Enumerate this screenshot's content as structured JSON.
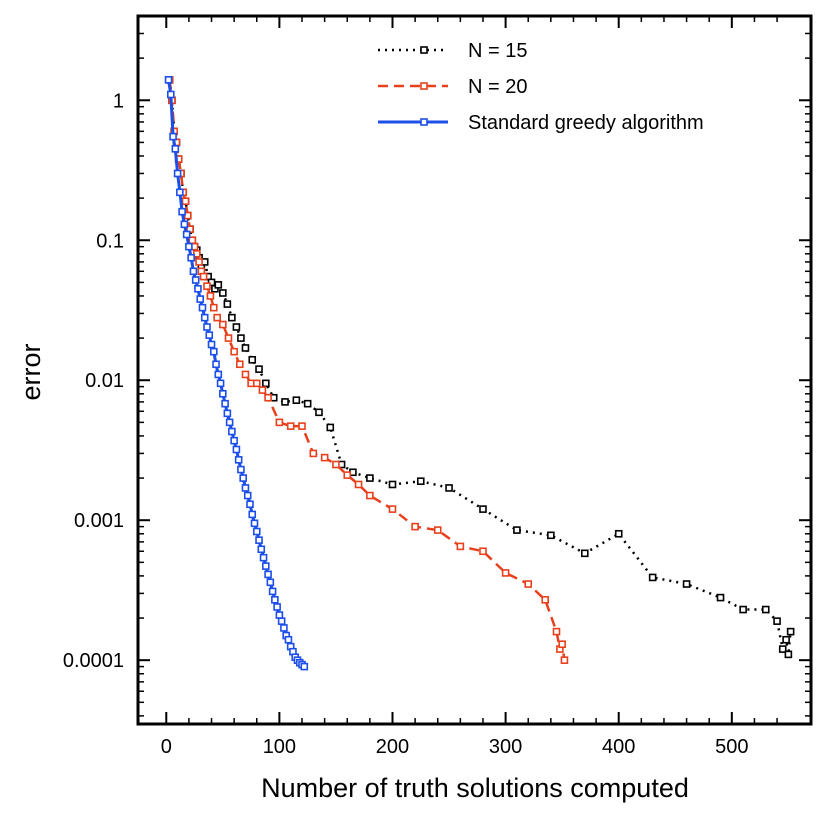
{
  "chart_data": {
    "type": "line",
    "title": "",
    "xlabel": "Number of truth solutions computed",
    "ylabel": "error",
    "xscale": "linear",
    "yscale": "log",
    "xlim": [
      -25,
      570
    ],
    "ylim": [
      3.5e-05,
      4.0
    ],
    "xticks": [
      0,
      100,
      200,
      300,
      400,
      500
    ],
    "xtick_labels": [
      "0",
      "100",
      "200",
      "300",
      "400",
      "500"
    ],
    "yticks": [
      1,
      0.1,
      0.01,
      0.001,
      0.0001
    ],
    "ytick_labels": [
      "1",
      "0.1",
      "0.01",
      "0.001",
      "0.0001"
    ],
    "legend_position": "top-right",
    "series": [
      {
        "name": "N = 15",
        "color": "#000000",
        "line_style": "dotted",
        "marker": "square",
        "x": [
          3,
          5,
          7,
          9,
          11,
          13,
          15,
          17,
          19,
          21,
          23,
          25,
          27,
          29,
          31,
          34,
          37,
          40,
          43,
          46,
          50,
          54,
          58,
          62,
          66,
          70,
          76,
          82,
          88,
          95,
          105,
          115,
          125,
          135,
          145,
          155,
          165,
          180,
          200,
          225,
          250,
          280,
          310,
          340,
          370,
          400,
          430,
          460,
          490,
          510,
          530,
          540,
          545,
          548,
          550,
          552
        ],
        "y": [
          1.4,
          1.0,
          0.6,
          0.5,
          0.38,
          0.3,
          0.22,
          0.19,
          0.15,
          0.12,
          0.1,
          0.09,
          0.085,
          0.075,
          0.065,
          0.07,
          0.055,
          0.05,
          0.045,
          0.048,
          0.042,
          0.035,
          0.028,
          0.024,
          0.02,
          0.017,
          0.014,
          0.012,
          0.0095,
          0.0075,
          0.007,
          0.0072,
          0.0068,
          0.0059,
          0.0046,
          0.0025,
          0.0022,
          0.002,
          0.0018,
          0.0019,
          0.0017,
          0.0012,
          0.00085,
          0.00078,
          0.00058,
          0.0008,
          0.00039,
          0.00035,
          0.00028,
          0.00023,
          0.00023,
          0.00019,
          0.00012,
          0.00014,
          0.00011,
          0.00016
        ]
      },
      {
        "name": "N = 20",
        "color": "#e8401c",
        "line_style": "dashed",
        "marker": "square",
        "x": [
          3,
          5,
          7,
          9,
          11,
          13,
          15,
          17,
          19,
          21,
          23,
          25,
          27,
          29,
          31,
          33,
          36,
          39,
          42,
          45,
          50,
          55,
          60,
          65,
          70,
          75,
          80,
          85,
          90,
          100,
          110,
          120,
          130,
          140,
          150,
          160,
          170,
          180,
          200,
          220,
          240,
          260,
          280,
          300,
          320,
          335,
          345,
          348,
          350,
          352
        ],
        "y": [
          1.4,
          1.0,
          0.6,
          0.5,
          0.38,
          0.3,
          0.22,
          0.19,
          0.15,
          0.12,
          0.1,
          0.09,
          0.08,
          0.07,
          0.06,
          0.055,
          0.047,
          0.04,
          0.033,
          0.028,
          0.025,
          0.02,
          0.016,
          0.013,
          0.011,
          0.0095,
          0.0095,
          0.0085,
          0.0075,
          0.005,
          0.0047,
          0.0047,
          0.003,
          0.0028,
          0.0025,
          0.0021,
          0.0018,
          0.0015,
          0.0012,
          0.0009,
          0.00085,
          0.00065,
          0.0006,
          0.00042,
          0.00035,
          0.00027,
          0.00016,
          0.00012,
          0.00013,
          0.0001
        ]
      },
      {
        "name": "Standard greedy algorithm",
        "color": "#1c4ee8",
        "line_style": "solid",
        "marker": "square",
        "x": [
          2,
          4,
          6,
          8,
          10,
          12,
          14,
          16,
          18,
          20,
          22,
          24,
          26,
          28,
          30,
          32,
          34,
          36,
          38,
          40,
          42,
          44,
          46,
          48,
          50,
          52,
          54,
          56,
          58,
          60,
          62,
          64,
          66,
          68,
          70,
          72,
          74,
          76,
          78,
          80,
          82,
          84,
          86,
          88,
          90,
          92,
          94,
          96,
          98,
          100,
          102,
          104,
          106,
          108,
          110,
          112,
          114,
          116,
          118,
          120,
          122
        ],
        "y": [
          1.4,
          1.1,
          0.55,
          0.45,
          0.3,
          0.22,
          0.16,
          0.13,
          0.11,
          0.09,
          0.075,
          0.06,
          0.052,
          0.045,
          0.038,
          0.033,
          0.028,
          0.024,
          0.021,
          0.018,
          0.016,
          0.013,
          0.011,
          0.0095,
          0.008,
          0.0068,
          0.0058,
          0.005,
          0.0043,
          0.0037,
          0.0032,
          0.0027,
          0.0023,
          0.002,
          0.0017,
          0.0015,
          0.0013,
          0.0011,
          0.00095,
          0.00083,
          0.00072,
          0.00062,
          0.00054,
          0.00047,
          0.00041,
          0.00036,
          0.00031,
          0.00027,
          0.00024,
          0.00021,
          0.00019,
          0.00017,
          0.00015,
          0.00014,
          0.000125,
          0.000115,
          0.000105,
          0.0001,
          9.6e-05,
          9.3e-05,
          9e-05
        ]
      }
    ]
  }
}
